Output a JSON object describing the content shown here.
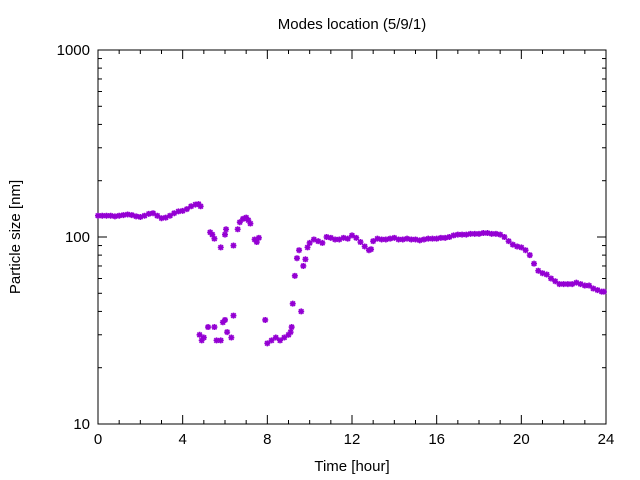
{
  "chart_data": {
    "type": "scatter",
    "title": "Modes location (5/9/1)",
    "xlabel": "Time [hour]",
    "ylabel": "Particle size [nm]",
    "xlim": [
      0,
      24
    ],
    "ylim": [
      10,
      1000
    ],
    "yscale": "log",
    "grid": false,
    "legend": "none",
    "marker_color": "#9400d3",
    "marker": "star",
    "x_ticks": [
      0,
      4,
      8,
      12,
      16,
      20,
      24
    ],
    "x_tick_labels": [
      "0",
      "4",
      "8",
      "12",
      "16",
      "20",
      "24"
    ],
    "y_ticks": [
      10,
      100,
      1000
    ],
    "y_tick_labels": [
      "10",
      "100",
      "1000"
    ],
    "series": [
      {
        "points": [
          [
            0.0,
            130
          ],
          [
            0.2,
            130
          ],
          [
            0.4,
            130
          ],
          [
            0.6,
            130
          ],
          [
            0.8,
            129
          ],
          [
            1.0,
            130
          ],
          [
            1.2,
            131
          ],
          [
            1.4,
            132
          ],
          [
            1.6,
            131
          ],
          [
            1.8,
            129
          ],
          [
            2.0,
            128
          ],
          [
            2.2,
            130
          ],
          [
            2.4,
            133
          ],
          [
            2.6,
            134
          ],
          [
            2.8,
            130
          ],
          [
            3.0,
            126
          ],
          [
            3.2,
            127
          ],
          [
            3.4,
            130
          ],
          [
            3.6,
            134
          ],
          [
            3.8,
            137
          ],
          [
            4.0,
            138
          ],
          [
            4.2,
            141
          ],
          [
            4.4,
            146
          ],
          [
            4.6,
            149
          ],
          [
            4.75,
            150
          ],
          [
            4.85,
            146
          ],
          [
            4.8,
            30
          ],
          [
            4.9,
            28
          ],
          [
            5.0,
            29
          ],
          [
            5.2,
            33
          ],
          [
            5.5,
            33
          ],
          [
            5.6,
            28
          ],
          [
            5.8,
            28
          ],
          [
            5.9,
            35
          ],
          [
            6.0,
            36
          ],
          [
            6.1,
            31
          ],
          [
            6.3,
            29
          ],
          [
            6.4,
            38
          ],
          [
            5.3,
            106
          ],
          [
            5.4,
            103
          ],
          [
            5.5,
            98
          ],
          [
            5.8,
            88
          ],
          [
            6.0,
            103
          ],
          [
            6.05,
            110
          ],
          [
            6.4,
            90
          ],
          [
            6.6,
            110
          ],
          [
            6.7,
            120
          ],
          [
            6.85,
            125
          ],
          [
            7.0,
            127
          ],
          [
            7.1,
            123
          ],
          [
            7.2,
            118
          ],
          [
            7.4,
            97
          ],
          [
            7.5,
            94
          ],
          [
            7.6,
            99
          ],
          [
            7.9,
            36
          ],
          [
            8.0,
            27
          ],
          [
            8.2,
            28
          ],
          [
            8.4,
            29
          ],
          [
            8.6,
            28
          ],
          [
            8.8,
            29
          ],
          [
            9.0,
            30
          ],
          [
            9.1,
            31
          ],
          [
            9.15,
            33
          ],
          [
            9.2,
            44
          ],
          [
            9.3,
            62
          ],
          [
            9.4,
            77
          ],
          [
            9.5,
            85
          ],
          [
            9.6,
            40
          ],
          [
            9.7,
            70
          ],
          [
            9.8,
            76
          ],
          [
            9.9,
            88
          ],
          [
            10.0,
            93
          ],
          [
            10.2,
            97
          ],
          [
            10.4,
            95
          ],
          [
            10.6,
            93
          ],
          [
            10.8,
            100
          ],
          [
            11.0,
            99
          ],
          [
            11.2,
            97
          ],
          [
            11.4,
            97
          ],
          [
            11.6,
            99
          ],
          [
            11.8,
            98
          ],
          [
            12.0,
            102
          ],
          [
            12.2,
            99
          ],
          [
            12.4,
            94
          ],
          [
            12.6,
            89
          ],
          [
            12.8,
            85
          ],
          [
            12.9,
            86
          ],
          [
            13.0,
            95
          ],
          [
            13.2,
            98
          ],
          [
            13.4,
            97
          ],
          [
            13.6,
            97
          ],
          [
            13.8,
            98
          ],
          [
            14.0,
            99
          ],
          [
            14.2,
            97
          ],
          [
            14.4,
            97
          ],
          [
            14.6,
            98
          ],
          [
            14.8,
            97
          ],
          [
            15.0,
            97
          ],
          [
            15.2,
            96
          ],
          [
            15.4,
            97
          ],
          [
            15.6,
            98
          ],
          [
            15.8,
            98
          ],
          [
            16.0,
            98
          ],
          [
            16.2,
            99
          ],
          [
            16.4,
            99
          ],
          [
            16.6,
            100
          ],
          [
            16.8,
            102
          ],
          [
            17.0,
            103
          ],
          [
            17.2,
            103
          ],
          [
            17.4,
            103
          ],
          [
            17.6,
            104
          ],
          [
            17.8,
            104
          ],
          [
            18.0,
            104
          ],
          [
            18.2,
            105
          ],
          [
            18.4,
            105
          ],
          [
            18.6,
            104
          ],
          [
            18.8,
            104
          ],
          [
            19.0,
            103
          ],
          [
            19.2,
            100
          ],
          [
            19.4,
            95
          ],
          [
            19.6,
            91
          ],
          [
            19.8,
            89
          ],
          [
            20.0,
            88
          ],
          [
            20.2,
            85
          ],
          [
            20.4,
            80
          ],
          [
            20.6,
            72
          ],
          [
            20.8,
            66
          ],
          [
            21.0,
            64
          ],
          [
            21.2,
            63
          ],
          [
            21.4,
            60
          ],
          [
            21.6,
            58
          ],
          [
            21.8,
            56
          ],
          [
            22.0,
            56
          ],
          [
            22.2,
            56
          ],
          [
            22.4,
            56
          ],
          [
            22.6,
            57
          ],
          [
            22.8,
            56
          ],
          [
            23.0,
            55
          ],
          [
            23.2,
            55
          ],
          [
            23.4,
            53
          ],
          [
            23.6,
            52
          ],
          [
            23.8,
            51
          ],
          [
            23.9,
            51
          ]
        ]
      }
    ]
  }
}
